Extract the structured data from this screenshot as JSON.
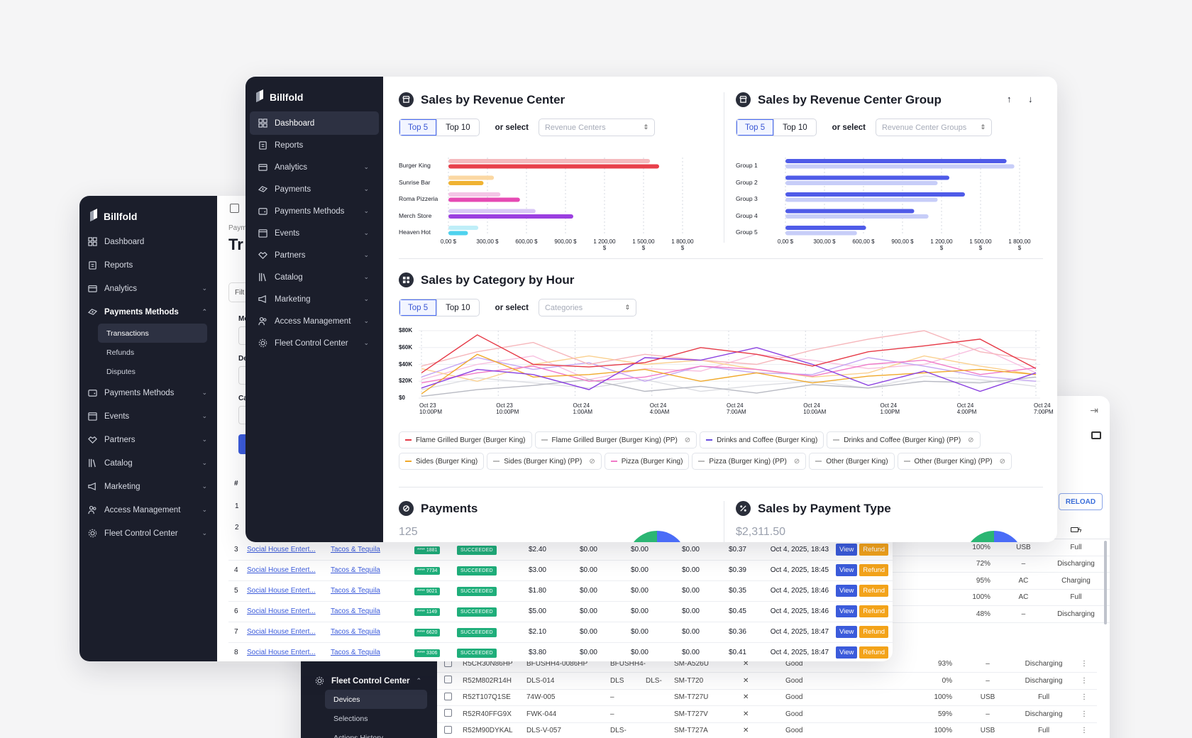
{
  "brand": "Billfold",
  "main_nav": [
    {
      "label": "Dashboard",
      "icon": "grid-icon",
      "active": true
    },
    {
      "label": "Reports",
      "icon": "clipboard-icon"
    },
    {
      "label": "Analytics",
      "icon": "card-icon",
      "chev": true
    },
    {
      "label": "Payments",
      "icon": "payments-icon",
      "chev": true
    },
    {
      "label": "Payments Methods",
      "icon": "wallet-icon",
      "chev": true
    },
    {
      "label": "Events",
      "icon": "calendar-icon",
      "chev": true
    },
    {
      "label": "Partners",
      "icon": "handshake-icon",
      "chev": true
    },
    {
      "label": "Catalog",
      "icon": "books-icon",
      "chev": true
    },
    {
      "label": "Marketing",
      "icon": "megaphone-icon",
      "chev": true
    },
    {
      "label": "Access Management",
      "icon": "users-icon",
      "chev": true
    },
    {
      "label": "Fleet Control Center",
      "icon": "cog-icon",
      "chev": true
    }
  ],
  "back_nav": [
    {
      "label": "Dashboard",
      "icon": "grid-icon"
    },
    {
      "label": "Reports",
      "icon": "clipboard-icon"
    },
    {
      "label": "Analytics",
      "icon": "card-icon",
      "chev": "⌄"
    },
    {
      "label": "Payments Methods",
      "icon": "payments-icon",
      "chev": "⌃",
      "bold": true
    },
    {
      "label": "Payments Methods",
      "icon": "wallet-icon",
      "chev": "⌄"
    },
    {
      "label": "Events",
      "icon": "calendar-icon",
      "chev": "⌄"
    },
    {
      "label": "Partners",
      "icon": "handshake-icon",
      "chev": "⌄"
    },
    {
      "label": "Catalog",
      "icon": "books-icon",
      "chev": "⌄"
    },
    {
      "label": "Marketing",
      "icon": "megaphone-icon",
      "chev": "⌄"
    },
    {
      "label": "Access Management",
      "icon": "users-icon",
      "chev": "⌄"
    },
    {
      "label": "Fleet Control Center",
      "icon": "cog-icon",
      "chev": "⌄"
    }
  ],
  "back_sub": [
    "Transactions",
    "Refunds",
    "Disputes"
  ],
  "back_header": {
    "crumb": "Paym",
    "title": "Tr",
    "filter": "Filt",
    "col_hash": "#",
    "f1": "Me",
    "f2": "De",
    "f3": "Ca",
    "row1": "1",
    "row2": "2"
  },
  "revenue_center": {
    "title": "Sales by Revenue Center",
    "top5": "Top 5",
    "top10": "Top 10",
    "or_select": "or select",
    "placeholder": "Revenue Centers"
  },
  "revenue_group": {
    "title": "Sales by Revenue Center Group",
    "top5": "Top 5",
    "top10": "Top 10",
    "or_select": "or select",
    "placeholder": "Revenue Center Groups"
  },
  "category_hour": {
    "title": "Sales by Category by Hour",
    "top5": "Top 5",
    "top10": "Top 10",
    "or_select": "or select",
    "placeholder": "Categories"
  },
  "payments": {
    "title": "Payments",
    "value": "125"
  },
  "payment_type": {
    "title": "Sales by Payment Type",
    "value": "$2,311.50"
  },
  "chart_data": [
    {
      "type": "bar",
      "categories": [
        "Burger King",
        "Sunrise Bar",
        "Roma Pizzeria",
        "Merch Store",
        "Heaven Hot"
      ],
      "series": [
        {
          "values": [
            1550,
            350,
            400,
            670,
            230
          ],
          "color": "#f4b3b8"
        },
        {
          "values": [
            1620,
            270,
            550,
            960,
            150
          ],
          "color": "#e63946"
        }
      ],
      "bar_colors": [
        [
          "#f5b9bd",
          "#e8404b"
        ],
        [
          "#fbd8a3",
          "#f0b332"
        ],
        [
          "#f4c4e6",
          "#e64ab3"
        ],
        [
          "#d9c7f6",
          "#9b3fe0"
        ],
        [
          "#bfeef8",
          "#4ed2ee"
        ]
      ],
      "xticks": [
        "0,00 $",
        "300,00 $",
        "600,00 $",
        "900,00 $",
        "1 200,00 $",
        "1 500,00 $",
        "1 800,00 $"
      ],
      "xlim": [
        0,
        1800
      ]
    },
    {
      "type": "bar",
      "categories": [
        "Group 1",
        "Group 2",
        "Group 3",
        "Group 4",
        "Group 5"
      ],
      "series": [
        {
          "values": [
            1700,
            1260,
            1380,
            990,
            620
          ],
          "color": "#4f5be8"
        },
        {
          "values": [
            1760,
            1170,
            1170,
            1100,
            550
          ],
          "color": "#c7cdf8"
        }
      ],
      "xticks": [
        "0,00 $",
        "300,00 $",
        "600,00 $",
        "900,00 $",
        "1 200,00 $",
        "1 500,00 $",
        "1 800,00 $"
      ],
      "xlim": [
        0,
        1800
      ]
    },
    {
      "type": "line",
      "yticks": [
        "$80K",
        "$60K",
        "$40K",
        "$20K",
        "$0"
      ],
      "ylim": [
        0,
        80000
      ],
      "xticks": [
        [
          "Oct 23",
          "10:00PM"
        ],
        [
          "Oct 23",
          "10:00PM"
        ],
        [
          "Oct 24",
          "1:00AM"
        ],
        [
          "Oct 24",
          "4:00AM"
        ],
        [
          "Oct 24",
          "7:00AM"
        ],
        [
          "Oct 24",
          "10:00AM"
        ],
        [
          "Oct 24",
          "1:00PM"
        ],
        [
          "Oct 24",
          "4:00PM"
        ],
        [
          "Oct 24",
          "7:00PM"
        ]
      ],
      "series": [
        {
          "name": "Flame Grilled Burger (Burger King)",
          "color": "#e63946",
          "values": [
            30000,
            75000,
            40000,
            37000,
            42000,
            60000,
            52000,
            38000,
            55000,
            62000,
            70000,
            35000
          ]
        },
        {
          "name": "Drinks and Coffee (Burger King)",
          "color": "#8a3fe0",
          "values": [
            12000,
            34000,
            28000,
            10000,
            48000,
            45000,
            60000,
            40000,
            15000,
            32000,
            8000,
            30000
          ]
        },
        {
          "name": "Sides (Burger King)",
          "color": "#f0a92a",
          "values": [
            5000,
            52000,
            25000,
            28000,
            34000,
            20000,
            30000,
            18000,
            26000,
            30000,
            34000,
            28000
          ]
        },
        {
          "name": "Pizza (Burger King)",
          "color": "#f07ac8",
          "values": [
            18000,
            30000,
            38000,
            20000,
            25000,
            38000,
            34000,
            26000,
            40000,
            45000,
            28000,
            36000
          ]
        },
        {
          "name": "Other (Burger King)",
          "color": "#b7b9c2",
          "values": [
            2000,
            10000,
            15000,
            22000,
            8000,
            14000,
            6000,
            16000,
            12000,
            20000,
            18000,
            25000
          ]
        },
        {
          "name": "Flame Grilled Burger (Burger King) (PP)",
          "color": "#f6b6bb",
          "values": [
            38000,
            55000,
            66000,
            40000,
            52000,
            45000,
            40000,
            57000,
            70000,
            80000,
            55000,
            45000
          ]
        },
        {
          "name": "Drinks and Coffee (Burger King) (PP)",
          "color": "#c5a6f2",
          "values": [
            25000,
            48000,
            34000,
            42000,
            20000,
            38000,
            30000,
            28000,
            48000,
            38000,
            26000,
            20000
          ]
        },
        {
          "name": "Sides (Burger King) (PP)",
          "color": "#fad08f",
          "values": [
            35000,
            20000,
            40000,
            50000,
            40000,
            45000,
            34000,
            25000,
            30000,
            50000,
            38000,
            28000
          ]
        },
        {
          "name": "Pizza (Burger King) (PP)",
          "color": "#f8c0e0",
          "values": [
            22000,
            40000,
            50000,
            22000,
            35000,
            32000,
            52000,
            45000,
            35000,
            40000,
            60000,
            30000
          ]
        },
        {
          "name": "Other (Burger King) (PP)",
          "color": "#dcdde2",
          "values": [
            10000,
            24000,
            18000,
            12000,
            22000,
            8000,
            15000,
            20000,
            12000,
            26000,
            22000,
            14000
          ]
        }
      ]
    }
  ],
  "legend": [
    {
      "label": "Flame Grilled Burger (Burger King)",
      "color": "#e63946",
      "eye": false
    },
    {
      "label": "Flame Grilled Burger (Burger King) (PP)",
      "color": "#bbb",
      "eye": true
    },
    {
      "label": "Drinks and Coffee (Burger King)",
      "color": "#6a4fe0",
      "eye": false
    },
    {
      "label": "Drinks and Coffee (Burger King) (PP)",
      "color": "#bbb",
      "eye": true
    },
    {
      "label": "Sides (Burger King)",
      "color": "#f0a92a",
      "eye": false
    },
    {
      "label": "Sides (Burger King) (PP)",
      "color": "#bbb",
      "eye": true
    },
    {
      "label": "Pizza (Burger King)",
      "color": "#f07ac8",
      "eye": false
    },
    {
      "label": "Pizza (Burger King) (PP)",
      "color": "#bbb",
      "eye": true
    },
    {
      "label": "Other (Burger King)",
      "color": "#bbb",
      "eye": false
    },
    {
      "label": "Other (Burger King) (PP)",
      "color": "#bbb",
      "eye": true
    }
  ],
  "transactions": [
    {
      "n": "3",
      "partner": "Social House Entert...",
      "merchant": "Tacos & Tequila",
      "card": "**** 1881",
      "status": "SUCCEEDED",
      "amt": "$2.40",
      "a": "$0.00",
      "b": "$0.00",
      "c": "$0.00",
      "fee": "$0.37",
      "date": "Oct 4, 2025, 18:43",
      "view": "View",
      "refund": "Refund"
    },
    {
      "n": "4",
      "partner": "Social House Entert...",
      "merchant": "Tacos & Tequila",
      "card": "**** 7734",
      "status": "SUCCEEDED",
      "amt": "$3.00",
      "a": "$0.00",
      "b": "$0.00",
      "c": "$0.00",
      "fee": "$0.39",
      "date": "Oct 4, 2025, 18:45",
      "view": "View",
      "refund": "Refund"
    },
    {
      "n": "5",
      "partner": "Social House Entert...",
      "merchant": "Tacos & Tequila",
      "card": "**** 9021",
      "status": "SUCCEEDED",
      "amt": "$1.80",
      "a": "$0.00",
      "b": "$0.00",
      "c": "$0.00",
      "fee": "$0.35",
      "date": "Oct 4, 2025, 18:46",
      "view": "View",
      "refund": "Refund"
    },
    {
      "n": "6",
      "partner": "Social House Entert...",
      "merchant": "Tacos & Tequila",
      "card": "**** 1149",
      "status": "SUCCEEDED",
      "amt": "$5.00",
      "a": "$0.00",
      "b": "$0.00",
      "c": "$0.00",
      "fee": "$0.45",
      "date": "Oct 4, 2025, 18:46",
      "view": "View",
      "refund": "Refund"
    },
    {
      "n": "7",
      "partner": "Social House Entert...",
      "merchant": "Tacos & Tequila",
      "card": "**** 6620",
      "status": "SUCCEEDED",
      "amt": "$2.10",
      "a": "$0.00",
      "b": "$0.00",
      "c": "$0.00",
      "fee": "$0.36",
      "date": "Oct 4, 2025, 18:47",
      "view": "View",
      "refund": "Refund"
    },
    {
      "n": "8",
      "partner": "Social House Entert...",
      "merchant": "Tacos & Tequila",
      "card": "**** 3306",
      "status": "SUCCEEDED",
      "amt": "$3.80",
      "a": "$0.00",
      "b": "$0.00",
      "c": "$0.00",
      "fee": "$0.41",
      "date": "Oct 4, 2025, 18:47",
      "view": "View",
      "refund": "Refund"
    }
  ],
  "fleet": {
    "nav_title": "Fleet Control Center",
    "sub": [
      "Devices",
      "Selections",
      "Actions History"
    ],
    "reload": "RELOAD",
    "head": [
      "%",
      "plug",
      "bolt"
    ],
    "top_rows": [
      {
        "pct": "100%",
        "pc": "green",
        "src": "USB",
        "sc": "blue",
        "state": "Full",
        "stc": "green"
      },
      {
        "pct": "72%",
        "pc": "green",
        "src": "–",
        "sc": "",
        "state": "Discharging",
        "stc": "green"
      },
      {
        "pct": "95%",
        "pc": "green",
        "src": "AC",
        "sc": "blue",
        "state": "Charging",
        "stc": "green"
      },
      {
        "pct": "100%",
        "pc": "green",
        "src": "AC",
        "sc": "blue",
        "state": "Full",
        "stc": "green"
      },
      {
        "pct": "48%",
        "pc": "orange",
        "src": "–",
        "sc": "",
        "state": "Discharging",
        "stc": "orange"
      }
    ],
    "rows": [
      {
        "serial": "R5CR30N86HP",
        "name": "BFUSHH4-0086HP",
        "model": "BFUSHH4-",
        "m2": "",
        "sm": "SM-A526U",
        "x": "✕",
        "health": "Good",
        "pct": "93%",
        "pc": "green",
        "src": "–",
        "sc": "",
        "state": "Discharging",
        "stc": "green"
      },
      {
        "serial": "R52M802R14H",
        "name": "DLS-014",
        "model": "DLS",
        "m2": "DLS-",
        "sm": "SM-T720",
        "x": "✕",
        "health": "Good",
        "pct": "0%",
        "pc": "red",
        "src": "–",
        "sc": "",
        "state": "Discharging",
        "stc": "red"
      },
      {
        "serial": "R52T107Q1SE",
        "name": "74W-005",
        "model": "–",
        "m2": "",
        "sm": "SM-T727U",
        "x": "✕",
        "health": "Good",
        "pct": "100%",
        "pc": "green",
        "src": "USB",
        "sc": "blue",
        "state": "Full",
        "stc": "green"
      },
      {
        "serial": "R52R40FFG9X",
        "name": "FWK-044",
        "model": "–",
        "m2": "",
        "sm": "SM-T727V",
        "x": "✕",
        "health": "Good",
        "pct": "59%",
        "pc": "green",
        "src": "–",
        "sc": "",
        "state": "Discharging",
        "stc": "green"
      },
      {
        "serial": "R52M90DYKAL",
        "name": "DLS-V-057",
        "model": "DLS-",
        "m2": "",
        "sm": "SM-T727A",
        "x": "✕",
        "health": "Good",
        "pct": "100%",
        "pc": "green",
        "src": "USB",
        "sc": "blue",
        "state": "Full",
        "stc": "green"
      }
    ]
  }
}
